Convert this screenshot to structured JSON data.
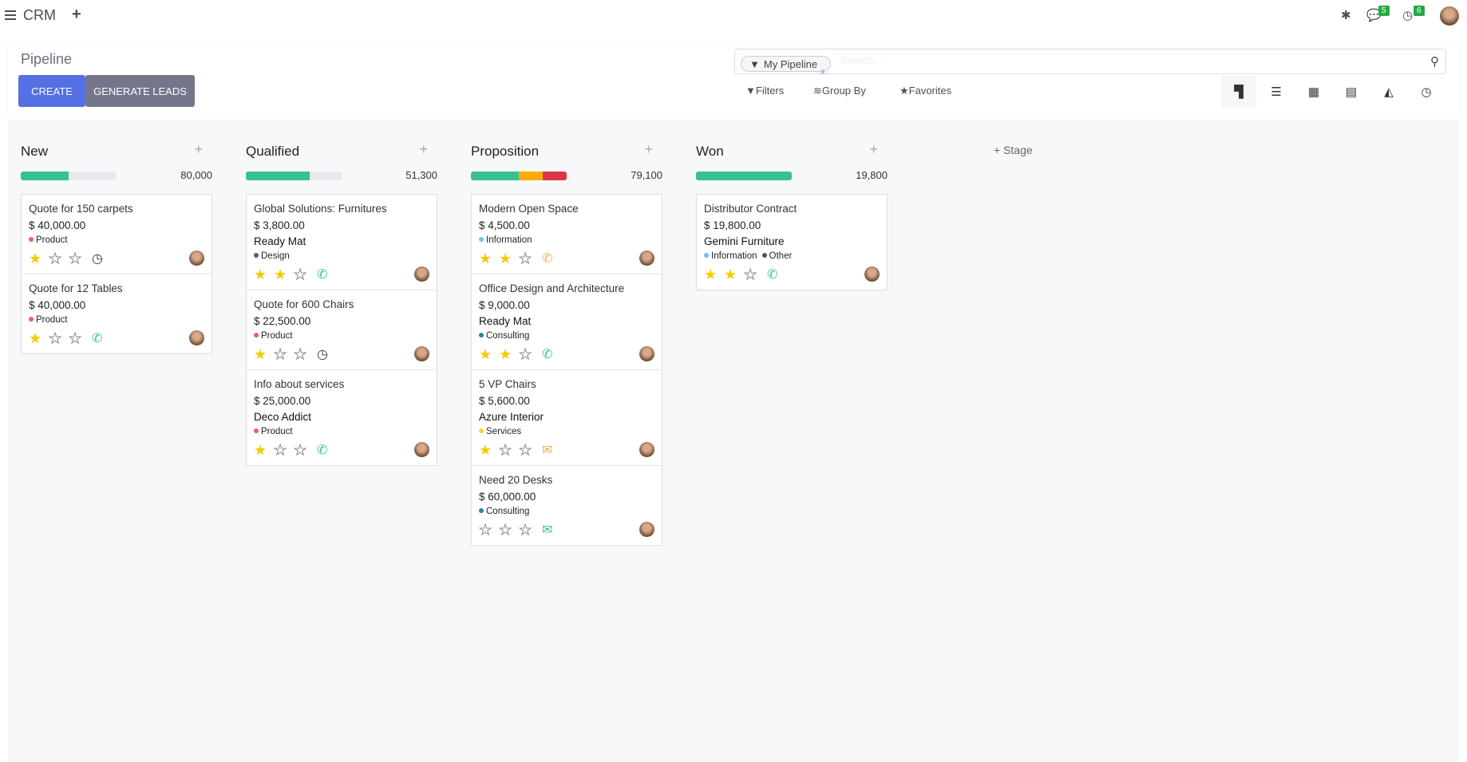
{
  "topbar": {
    "app_name": "CRM",
    "messages_count": "5",
    "activities_count": "6"
  },
  "control_panel": {
    "title": "Pipeline",
    "create_label": "CREATE",
    "generate_label": "GENERATE LEADS",
    "search": {
      "facet": "My Pipeline",
      "placeholder": "Search..."
    },
    "filters_label": "Filters",
    "group_by_label": "Group By",
    "favorites_label": "Favorites",
    "views": [
      "kanban",
      "list",
      "calendar",
      "pivot",
      "graph",
      "activity"
    ],
    "active_view": "kanban"
  },
  "add_stage_label": "Stage",
  "columns": [
    {
      "name": "New",
      "total": "80,000",
      "progress": [
        {
          "color": "#35c28f",
          "pct": 50
        }
      ],
      "cards": [
        {
          "title": "Quote for 150 carpets",
          "amount": "$ 40,000.00",
          "company": "",
          "tags": [
            {
              "label": "Product",
              "color": "#f05d5e"
            }
          ],
          "stars": 1,
          "activity": "clock"
        },
        {
          "title": "Quote for 12 Tables",
          "amount": "$ 40,000.00",
          "company": "",
          "tags": [
            {
              "label": "Product",
              "color": "#f05d5e"
            }
          ],
          "stars": 1,
          "activity": "phone"
        }
      ]
    },
    {
      "name": "Qualified",
      "total": "51,300",
      "progress": [
        {
          "color": "#35c28f",
          "pct": 67
        }
      ],
      "cards": [
        {
          "title": "Global Solutions: Furnitures",
          "amount": "$ 3,800.00",
          "company": "Ready Mat",
          "tags": [
            {
              "label": "Design",
              "color": "#7b4a6f"
            }
          ],
          "stars": 2,
          "activity": "phone"
        },
        {
          "title": "Quote for 600 Chairs",
          "amount": "$ 22,500.00",
          "company": "",
          "tags": [
            {
              "label": "Product",
              "color": "#f05d5e"
            }
          ],
          "stars": 1,
          "activity": "clock"
        },
        {
          "title": "Info about services",
          "amount": "$ 25,000.00",
          "company": "Deco Addict",
          "tags": [
            {
              "label": "Product",
              "color": "#f05d5e"
            }
          ],
          "stars": 1,
          "activity": "phone"
        }
      ]
    },
    {
      "name": "Proposition",
      "total": "79,100",
      "progress": [
        {
          "color": "#35c28f",
          "pct": 50
        },
        {
          "color": "#fdac07",
          "pct": 25
        },
        {
          "color": "#dc3545",
          "pct": 25
        }
      ],
      "cards": [
        {
          "title": "Modern Open Space",
          "amount": "$ 4,500.00",
          "company": "",
          "tags": [
            {
              "label": "Information",
              "color": "#6cc1ed"
            }
          ],
          "stars": 2,
          "activity": "phone-warning"
        },
        {
          "title": "Office Design and Architecture",
          "amount": "$ 9,000.00",
          "company": "Ready Mat",
          "tags": [
            {
              "label": "Consulting",
              "color": "#2c8397"
            }
          ],
          "stars": 2,
          "activity": "phone"
        },
        {
          "title": "5 VP Chairs",
          "amount": "$ 5,600.00",
          "company": "Azure Interior",
          "tags": [
            {
              "label": "Services",
              "color": "#fcd522"
            }
          ],
          "stars": 1,
          "activity": "email-warning"
        },
        {
          "title": "Need 20 Desks",
          "amount": "$ 60,000.00",
          "company": "",
          "tags": [
            {
              "label": "Consulting",
              "color": "#2c8397"
            }
          ],
          "stars": 0,
          "activity": "email"
        }
      ]
    },
    {
      "name": "Won",
      "total": "19,800",
      "progress": [
        {
          "color": "#35c28f",
          "pct": 100
        }
      ],
      "cards": [
        {
          "title": "Distributor Contract",
          "amount": "$ 19,800.00",
          "company": "Gemini Furniture",
          "tags": [
            {
              "label": "Information",
              "color": "#6cc1ed"
            },
            {
              "label": "Other",
              "color": "#475577"
            }
          ],
          "stars": 2,
          "activity": "phone"
        }
      ]
    }
  ],
  "colors": {
    "primary": "#5470e3",
    "secondary": "#747789",
    "success": "#35c28f",
    "warning": "#fdac07",
    "danger": "#dc3545"
  }
}
